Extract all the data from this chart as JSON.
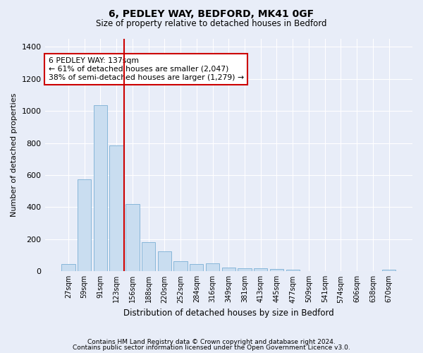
{
  "title1": "6, PEDLEY WAY, BEDFORD, MK41 0GF",
  "title2": "Size of property relative to detached houses in Bedford",
  "xlabel": "Distribution of detached houses by size in Bedford",
  "ylabel": "Number of detached properties",
  "categories": [
    "27sqm",
    "59sqm",
    "91sqm",
    "123sqm",
    "156sqm",
    "188sqm",
    "220sqm",
    "252sqm",
    "284sqm",
    "316sqm",
    "349sqm",
    "381sqm",
    "413sqm",
    "445sqm",
    "477sqm",
    "509sqm",
    "541sqm",
    "574sqm",
    "606sqm",
    "638sqm",
    "670sqm"
  ],
  "values": [
    47,
    573,
    1035,
    787,
    420,
    180,
    125,
    65,
    45,
    48,
    25,
    20,
    20,
    13,
    8,
    0,
    0,
    0,
    0,
    0,
    10
  ],
  "bar_color": "#c9ddf0",
  "bar_edge_color": "#7aafd4",
  "vline_x_index": 3.5,
  "vline_color": "#cc0000",
  "annotation_text": "6 PEDLEY WAY: 137sqm\n← 61% of detached houses are smaller (2,047)\n38% of semi-detached houses are larger (1,279) →",
  "annotation_box_color": "#ffffff",
  "annotation_box_edge": "#cc0000",
  "bg_color": "#e8edf8",
  "plot_bg_color": "#e8edf8",
  "footer1": "Contains HM Land Registry data © Crown copyright and database right 2024.",
  "footer2": "Contains public sector information licensed under the Open Government Licence v3.0.",
  "ylim": [
    0,
    1450
  ],
  "yticks": [
    0,
    200,
    400,
    600,
    800,
    1000,
    1200,
    1400
  ]
}
